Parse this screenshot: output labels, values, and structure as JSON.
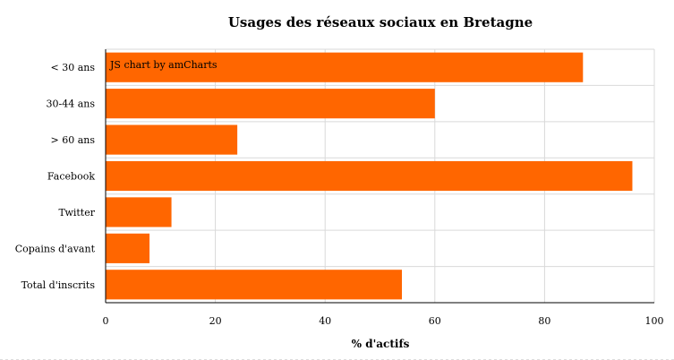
{
  "chart_data": {
    "type": "bar",
    "orientation": "horizontal",
    "title": "Usages des réseaux sociaux en Bretagne",
    "xlabel": "% d'actifs",
    "ylabel": "",
    "categories": [
      "< 30 ans",
      "30-44 ans",
      "> 60 ans",
      "Facebook",
      "Twitter",
      "Copains d'avant",
      "Total d'inscrits"
    ],
    "values": [
      87,
      60,
      24,
      96,
      12,
      8,
      54
    ],
    "xlim": [
      0,
      100
    ],
    "x_ticks": [
      0,
      20,
      40,
      60,
      80,
      100
    ],
    "grid": true,
    "bar_color": "#ff6600",
    "credit": "JS chart by amCharts"
  }
}
